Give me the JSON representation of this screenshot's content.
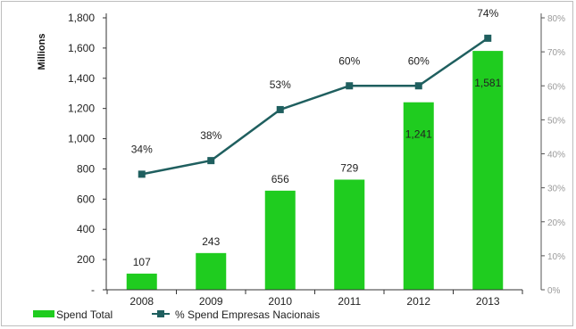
{
  "chart_data": {
    "type": "bar",
    "categories": [
      "2008",
      "2009",
      "2010",
      "2011",
      "2012",
      "2013"
    ],
    "ylabel": "Millions",
    "ylim": [
      0,
      1800
    ],
    "yticks": [
      "-",
      "200",
      "400",
      "600",
      "800",
      "1,000",
      "1,200",
      "1,400",
      "1,600",
      "1,800"
    ],
    "y2lim": [
      0,
      80
    ],
    "y2ticks": [
      "0%",
      "10%",
      "20%",
      "30%",
      "40%",
      "50%",
      "60%",
      "70%",
      "80%"
    ],
    "series": [
      {
        "name": "Spend Total",
        "type": "bar",
        "values": [
          107,
          243,
          656,
          729,
          1241,
          1581
        ],
        "labels": [
          "107",
          "243",
          "656",
          "729",
          "1,241",
          "1,581"
        ],
        "color": "#1fcc1f"
      },
      {
        "name": "% Spend Empresas Nacionais",
        "type": "line",
        "axis": "right",
        "values": [
          34,
          38,
          53,
          60,
          60,
          74
        ],
        "labels": [
          "34%",
          "38%",
          "53%",
          "60%",
          "60%",
          "74%"
        ],
        "color": "#1f5f5f"
      }
    ],
    "legend": "bottom-left",
    "grid": false
  }
}
